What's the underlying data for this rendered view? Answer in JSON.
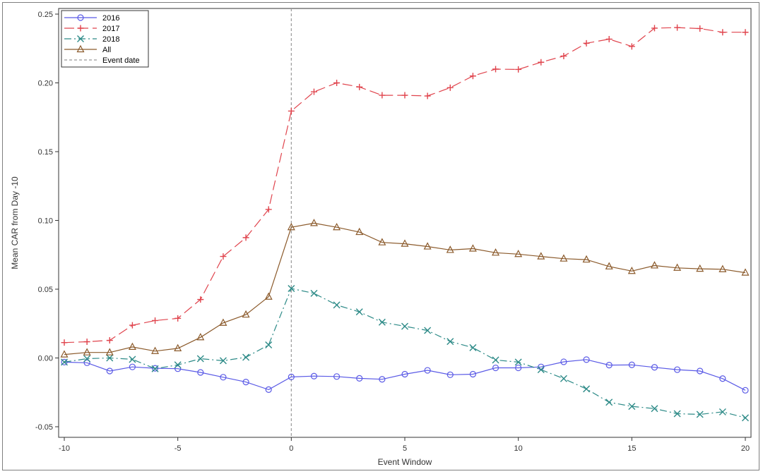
{
  "chart_data": {
    "type": "line",
    "title": "",
    "xlabel": "Event Window",
    "ylabel": "Mean CAR from Day -10",
    "xlim": [
      -10,
      20
    ],
    "ylim": [
      -0.05,
      0.25
    ],
    "x_ticks": [
      "-10",
      "-5",
      "0",
      "5",
      "10",
      "15",
      "20"
    ],
    "y_ticks": [
      "-0.05",
      "0.00",
      "0.05",
      "0.10",
      "0.15",
      "0.20",
      "0.25"
    ],
    "x_tick_values": [
      -10,
      -5,
      0,
      5,
      10,
      15,
      20
    ],
    "y_tick_values": [
      -0.05,
      0,
      0.05,
      0.1,
      0.15,
      0.2,
      0.25
    ],
    "grid": false,
    "legend_position": "top-left",
    "x": [
      -10,
      -9,
      -8,
      -7,
      -6,
      -5,
      -4,
      -3,
      -2,
      -1,
      0,
      1,
      2,
      3,
      4,
      5,
      6,
      7,
      8,
      9,
      10,
      11,
      12,
      13,
      14,
      15,
      16,
      17,
      18,
      19,
      20
    ],
    "event_line": {
      "name": "Event date",
      "x": 0,
      "color": "#999999"
    },
    "series": [
      {
        "name": "2016",
        "color": "#5a5ae6",
        "marker": "circle",
        "dash": "solid",
        "values": [
          -0.003,
          -0.0035,
          -0.0095,
          -0.0065,
          -0.0075,
          -0.0078,
          -0.0105,
          -0.014,
          -0.0175,
          -0.023,
          -0.0138,
          -0.0132,
          -0.0135,
          -0.0148,
          -0.0155,
          -0.0118,
          -0.009,
          -0.0122,
          -0.0118,
          -0.0072,
          -0.0072,
          -0.0065,
          -0.0028,
          -0.0012,
          -0.0052,
          -0.005,
          -0.0068,
          -0.0085,
          -0.0095,
          -0.015,
          -0.0235
        ]
      },
      {
        "name": "2017",
        "color": "#e0444d",
        "marker": "plus",
        "dash": "longdash",
        "values": [
          0.0112,
          0.0118,
          0.0128,
          0.0238,
          0.0272,
          0.0288,
          0.0425,
          0.0738,
          0.0875,
          0.108,
          0.1795,
          0.1935,
          0.2,
          0.197,
          0.191,
          0.191,
          0.1905,
          0.1965,
          0.205,
          0.21,
          0.2098,
          0.215,
          0.2195,
          0.2288,
          0.2318,
          0.2265,
          0.2398,
          0.2402,
          0.2395,
          0.2368,
          0.2368
        ]
      },
      {
        "name": "2018",
        "color": "#2e8b88",
        "marker": "x",
        "dash": "dashdot",
        "values": [
          -0.003,
          -0.0005,
          0.0,
          -0.001,
          -0.0078,
          -0.005,
          -0.0005,
          -0.002,
          0.0005,
          0.0095,
          0.0505,
          0.047,
          0.0385,
          0.0335,
          0.026,
          0.023,
          0.02,
          0.012,
          0.0075,
          -0.0015,
          -0.003,
          -0.0085,
          -0.015,
          -0.0225,
          -0.0322,
          -0.0352,
          -0.0368,
          -0.0405,
          -0.041,
          -0.0392,
          -0.0435
        ]
      },
      {
        "name": "All",
        "color": "#8b5a2b",
        "marker": "triangle",
        "dash": "solid",
        "values": [
          0.0025,
          0.004,
          0.004,
          0.008,
          0.005,
          0.007,
          0.015,
          0.0255,
          0.0315,
          0.0445,
          0.095,
          0.098,
          0.095,
          0.0915,
          0.084,
          0.083,
          0.081,
          0.0785,
          0.0795,
          0.0765,
          0.0755,
          0.0738,
          0.0722,
          0.0715,
          0.0665,
          0.0632,
          0.0672,
          0.0655,
          0.0648,
          0.0645,
          0.062
        ]
      }
    ]
  }
}
